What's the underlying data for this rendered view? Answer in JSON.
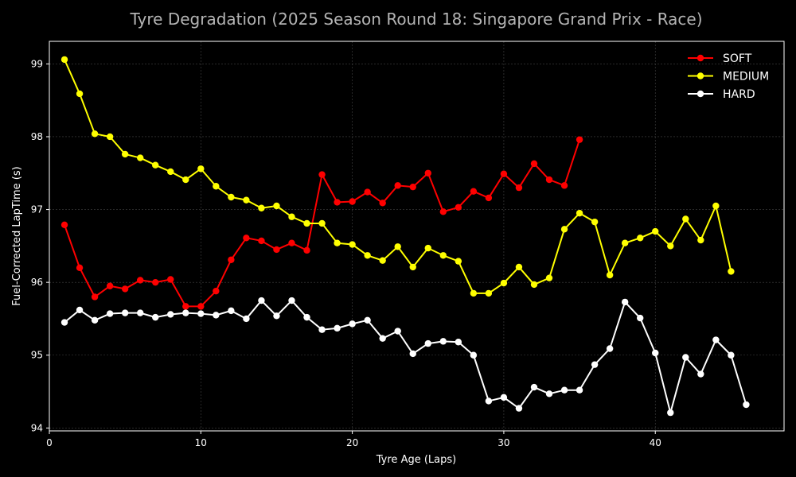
{
  "chart_data": {
    "type": "line",
    "title": "Tyre Degradation (2025 Season Round 18: Singapore Grand Prix - Race)",
    "xlabel": "Tyre Age (Laps)",
    "ylabel": "Fuel-Corrected LapTime (s)",
    "xlim": [
      0,
      48.5
    ],
    "ylim": [
      93.96,
      99.31
    ],
    "xticks": [
      0,
      10,
      20,
      30,
      40
    ],
    "yticks": [
      94,
      95,
      96,
      97,
      98,
      99
    ],
    "grid": true,
    "legend_position": "top-right",
    "background": "#000000",
    "series": [
      {
        "name": "SOFT",
        "color": "#ff0000",
        "x": [
          1,
          2,
          3,
          4,
          5,
          6,
          7,
          8,
          9,
          10,
          11,
          12,
          13,
          14,
          15,
          16,
          17,
          18,
          19,
          20,
          21,
          22,
          23,
          24,
          25,
          26,
          27,
          28,
          29,
          30,
          31,
          32,
          33,
          34,
          35
        ],
        "values": [
          96.79,
          96.2,
          95.8,
          95.95,
          95.91,
          96.03,
          96.0,
          96.04,
          95.67,
          95.67,
          95.88,
          96.31,
          96.61,
          96.57,
          96.45,
          96.54,
          96.44,
          97.48,
          97.1,
          97.11,
          97.24,
          97.09,
          97.33,
          97.31,
          97.5,
          96.97,
          97.03,
          97.25,
          97.16,
          97.49,
          97.3,
          97.63,
          97.41,
          97.33,
          97.96
        ]
      },
      {
        "name": "MEDIUM",
        "color": "#ffff00",
        "x": [
          1,
          2,
          3,
          4,
          5,
          6,
          7,
          8,
          9,
          10,
          11,
          12,
          13,
          14,
          15,
          16,
          17,
          18,
          19,
          20,
          21,
          22,
          23,
          24,
          25,
          26,
          27,
          28,
          29,
          30,
          31,
          32,
          33,
          34,
          35,
          36,
          37,
          38,
          39,
          40,
          41,
          42,
          43,
          44,
          45
        ],
        "values": [
          99.06,
          98.59,
          98.04,
          98.0,
          97.76,
          97.71,
          97.61,
          97.52,
          97.41,
          97.56,
          97.32,
          97.17,
          97.13,
          97.02,
          97.05,
          96.9,
          96.81,
          96.81,
          96.54,
          96.52,
          96.37,
          96.3,
          96.49,
          96.21,
          96.47,
          96.37,
          96.29,
          95.85,
          95.85,
          95.99,
          96.21,
          95.97,
          96.06,
          96.73,
          96.95,
          96.83,
          96.1,
          96.54,
          96.61,
          96.7,
          96.5,
          96.87,
          96.58,
          97.05,
          96.15
        ]
      },
      {
        "name": "HARD",
        "color": "#ffffff",
        "x": [
          1,
          2,
          3,
          4,
          5,
          6,
          7,
          8,
          9,
          10,
          11,
          12,
          13,
          14,
          15,
          16,
          17,
          18,
          19,
          20,
          21,
          22,
          23,
          24,
          25,
          26,
          27,
          28,
          29,
          30,
          31,
          32,
          33,
          34,
          35,
          36,
          37,
          38,
          39,
          40,
          41,
          42,
          43,
          44,
          45,
          46
        ],
        "values": [
          95.45,
          95.62,
          95.48,
          95.57,
          95.58,
          95.58,
          95.52,
          95.56,
          95.58,
          95.57,
          95.55,
          95.61,
          95.5,
          95.75,
          95.54,
          95.75,
          95.52,
          95.35,
          95.37,
          95.43,
          95.48,
          95.23,
          95.33,
          95.02,
          95.16,
          95.19,
          95.18,
          95.0,
          94.37,
          94.42,
          94.27,
          94.56,
          94.47,
          94.52,
          94.52,
          94.87,
          95.09,
          95.73,
          95.51,
          95.03,
          94.21,
          94.97,
          94.74,
          95.21,
          95.0,
          94.32
        ]
      }
    ]
  }
}
